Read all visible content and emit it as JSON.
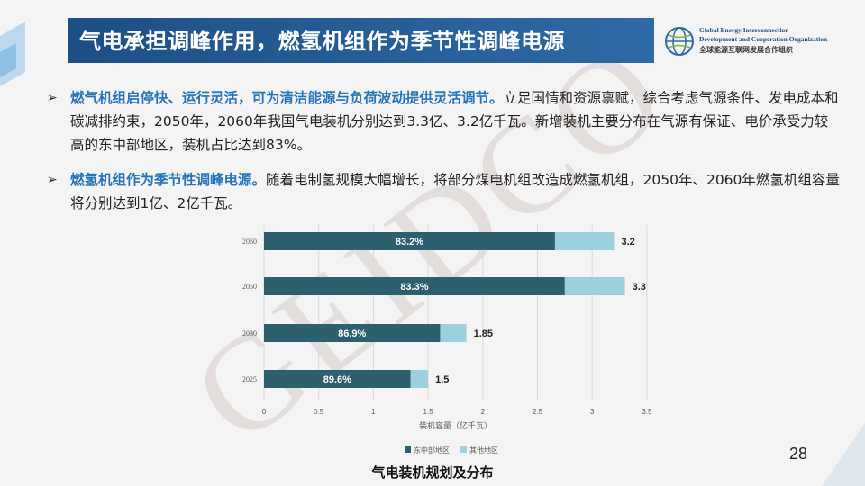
{
  "header": {
    "title": "气电承担调峰作用，燃氢机组作为季节性调峰电源",
    "logo": {
      "line1": "Global Energy Interconnection",
      "line2": "Development and Cooperation Organization",
      "line3": "全球能源互联网发展合作组织"
    }
  },
  "bullets": [
    {
      "marker": "➢",
      "highlight": "燃气机组启停快、运行灵活，可为清洁能源与负荷波动提供灵活调节。",
      "text": "立足国情和资源禀赋，综合考虑气源条件、发电成本和碳减排约束，2050年，2060年我国气电装机分别达到3.3亿、3.2亿千瓦。新增装机主要分布在气源有保证、电价承受力较高的东中部地区，装机占比达到83%。"
    },
    {
      "marker": "➢",
      "highlight": "燃氢机组作为季节性调峰电源。",
      "text": "随着电制氢规模大幅增长，将部分煤电机组改造成燃氢机组，2050年、2060年燃氢机组容量将分别达到1亿、2亿千瓦。"
    }
  ],
  "chart_data": {
    "type": "bar",
    "orientation": "horizontal",
    "stacked": true,
    "categories": [
      "2060",
      "2050",
      "2030",
      "2025"
    ],
    "series": [
      {
        "name": "东中部地区",
        "color": "#2d5f6e",
        "values": [
          2.66,
          2.75,
          1.61,
          1.34
        ],
        "labels": [
          "83.2%",
          "83.3%",
          "86.9%",
          "89.6%"
        ]
      },
      {
        "name": "其他地区",
        "color": "#9dd0de",
        "values": [
          0.54,
          0.55,
          0.24,
          0.16
        ]
      }
    ],
    "totals": [
      "3.2",
      "3.3",
      "1.85",
      "1.5"
    ],
    "x_ticks": [
      "0",
      "0.5",
      "1",
      "1.5",
      "2",
      "2.5",
      "3",
      "3.5"
    ],
    "xlabel": "装机容量（亿千瓦）",
    "xlim": [
      0,
      3.5
    ],
    "legend_position": "bottom"
  },
  "watermark": "GEIDCO",
  "footer": {
    "caption": "气电装机规划及分布",
    "page_number": "28"
  }
}
